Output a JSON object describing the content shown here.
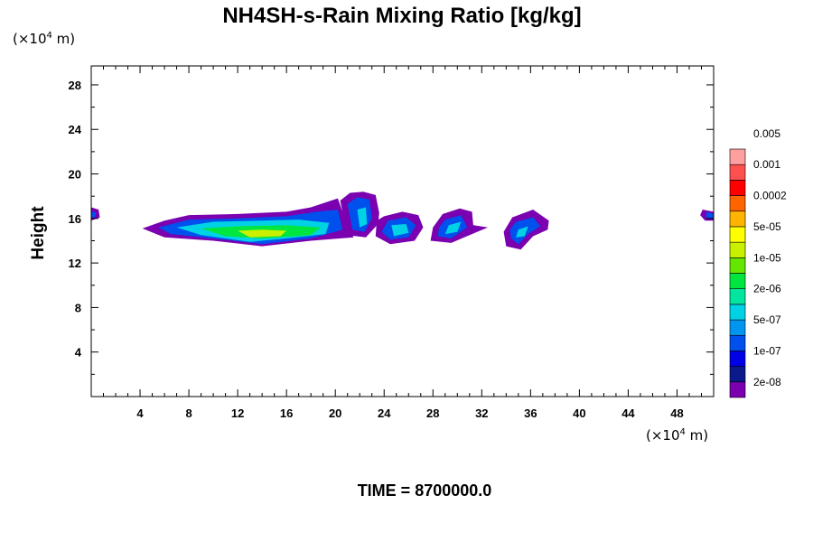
{
  "chart_data": {
    "type": "contour",
    "title": "NH4SH-s-Rain Mixing Ratio [kg/kg]",
    "ylabel": "Height",
    "x_unit": {
      "prefix": "(×10",
      "exp": "4",
      "suffix": " m)"
    },
    "y_unit": {
      "prefix": "(×10",
      "exp": "4",
      "suffix": " m)"
    },
    "footer": "TIME = 8700000.0",
    "xlim": [
      0,
      51
    ],
    "ylim": [
      0,
      29.7
    ],
    "x_ticks": [
      4,
      8,
      12,
      16,
      20,
      24,
      28,
      32,
      36,
      40,
      44,
      48
    ],
    "y_ticks": [
      4,
      8,
      12,
      16,
      20,
      24,
      28
    ],
    "colorbar": {
      "colors": [
        "#7a00b0",
        "#0a1a8a",
        "#0000e6",
        "#0050ee",
        "#0096f0",
        "#00d2e6",
        "#00e6a0",
        "#00e640",
        "#64e600",
        "#c8f000",
        "#ffff00",
        "#ffb400",
        "#ff6400",
        "#ff0000",
        "#ff5050",
        "#ffa0a0"
      ],
      "labels": [
        "2e-08",
        "1e-07",
        "5e-07",
        "2e-06",
        "1e-05",
        "5e-05",
        "0.0002",
        "0.001",
        "0.005"
      ]
    },
    "regions": [
      {
        "name": "main-band",
        "bounds": [
          [
            4.2,
            15.1
          ],
          [
            6,
            15.8
          ],
          [
            8,
            16.3
          ],
          [
            12,
            16.4
          ],
          [
            16,
            16.6
          ],
          [
            18,
            17.0
          ],
          [
            20.2,
            17.8
          ],
          [
            20.8,
            16.0
          ],
          [
            21.5,
            14.3
          ],
          [
            18,
            14.0
          ],
          [
            14,
            13.5
          ],
          [
            10,
            14.0
          ],
          [
            6,
            14.3
          ]
        ],
        "levels": [
          [
            [
              4.2,
              15.1
            ],
            [
              6,
              15.8
            ],
            [
              8,
              16.3
            ],
            [
              12,
              16.4
            ],
            [
              16,
              16.6
            ],
            [
              18,
              17.0
            ],
            [
              20.2,
              17.8
            ],
            [
              20.8,
              16.0
            ],
            [
              21.5,
              14.3
            ],
            [
              18,
              14.0
            ],
            [
              14,
              13.5
            ],
            [
              10,
              14.0
            ],
            [
              6,
              14.3
            ]
          ],
          [
            [
              5.5,
              15.2
            ],
            [
              8,
              15.9
            ],
            [
              12,
              16.0
            ],
            [
              16,
              16.2
            ],
            [
              18.5,
              16.6
            ],
            [
              20.2,
              16.8
            ],
            [
              20.6,
              15.0
            ],
            [
              18,
              14.2
            ],
            [
              14,
              13.7
            ],
            [
              10,
              14.2
            ],
            [
              6.5,
              14.6
            ]
          ],
          [
            [
              7,
              15.2
            ],
            [
              10,
              15.7
            ],
            [
              14,
              15.8
            ],
            [
              17,
              15.9
            ],
            [
              19.5,
              15.6
            ],
            [
              19.2,
              14.6
            ],
            [
              16,
              14.2
            ],
            [
              13,
              13.9
            ],
            [
              9,
              14.5
            ]
          ],
          [
            [
              9,
              15.1
            ],
            [
              12,
              15.3
            ],
            [
              16,
              15.4
            ],
            [
              18.8,
              15.2
            ],
            [
              18,
              14.5
            ],
            [
              14,
              14.2
            ],
            [
              11,
              14.4
            ]
          ],
          [
            [
              12,
              14.9
            ],
            [
              14,
              15.0
            ],
            [
              16,
              14.9
            ],
            [
              15.5,
              14.4
            ],
            [
              13,
              14.3
            ]
          ]
        ]
      },
      {
        "name": "cell-22",
        "bounds": [
          [
            20.4,
            17.6
          ],
          [
            21.2,
            18.3
          ],
          [
            22.3,
            18.4
          ],
          [
            23.3,
            18.1
          ],
          [
            23.6,
            16.5
          ],
          [
            23.5,
            15.5
          ],
          [
            22.5,
            14.3
          ],
          [
            21.0,
            14.5
          ]
        ],
        "levels": [
          [
            [
              20.4,
              17.6
            ],
            [
              21.2,
              18.3
            ],
            [
              22.3,
              18.4
            ],
            [
              23.3,
              18.1
            ],
            [
              23.6,
              16.5
            ],
            [
              23.5,
              15.5
            ],
            [
              22.5,
              14.3
            ],
            [
              21.0,
              14.5
            ]
          ],
          [
            [
              21.0,
              17.3
            ],
            [
              21.8,
              17.9
            ],
            [
              22.8,
              17.7
            ],
            [
              23.0,
              16.0
            ],
            [
              22.4,
              14.8
            ],
            [
              21.4,
              15.0
            ]
          ],
          [
            [
              21.8,
              16.8
            ],
            [
              22.5,
              17.0
            ],
            [
              22.6,
              15.5
            ],
            [
              22.0,
              15.2
            ]
          ]
        ]
      },
      {
        "name": "cell-25",
        "bounds": [
          [
            24.0,
            16.2
          ],
          [
            25.5,
            16.6
          ],
          [
            26.8,
            16.3
          ],
          [
            27.2,
            15.2
          ],
          [
            26.5,
            14.0
          ],
          [
            24.5,
            13.7
          ],
          [
            23.3,
            14.4
          ],
          [
            23.4,
            15.8
          ]
        ],
        "levels": [
          [
            [
              24.0,
              16.2
            ],
            [
              25.5,
              16.6
            ],
            [
              26.8,
              16.3
            ],
            [
              27.2,
              15.2
            ],
            [
              26.5,
              14.0
            ],
            [
              24.5,
              13.7
            ],
            [
              23.3,
              14.4
            ],
            [
              23.4,
              15.8
            ]
          ],
          [
            [
              24.3,
              15.8
            ],
            [
              25.8,
              16.1
            ],
            [
              26.6,
              15.4
            ],
            [
              26.0,
              14.3
            ],
            [
              24.5,
              14.1
            ],
            [
              23.8,
              14.8
            ]
          ],
          [
            [
              24.6,
              15.4
            ],
            [
              25.8,
              15.5
            ],
            [
              26.0,
              14.7
            ],
            [
              24.8,
              14.4
            ]
          ]
        ]
      },
      {
        "name": "cell-29",
        "bounds": [
          [
            28.8,
            16.4
          ],
          [
            30.2,
            16.9
          ],
          [
            31.2,
            16.6
          ],
          [
            31.3,
            15.4
          ],
          [
            32.5,
            15.2
          ],
          [
            31.0,
            14.5
          ],
          [
            29.5,
            13.8
          ],
          [
            27.8,
            14.0
          ],
          [
            28.0,
            15.2
          ]
        ],
        "levels": [
          [
            [
              28.8,
              16.4
            ],
            [
              30.2,
              16.9
            ],
            [
              31.2,
              16.6
            ],
            [
              31.3,
              15.4
            ],
            [
              32.5,
              15.2
            ],
            [
              31.0,
              14.5
            ],
            [
              29.5,
              13.8
            ],
            [
              27.8,
              14.0
            ],
            [
              28.0,
              15.2
            ]
          ],
          [
            [
              29.0,
              15.9
            ],
            [
              30.3,
              16.3
            ],
            [
              30.8,
              15.2
            ],
            [
              29.5,
              14.2
            ],
            [
              28.4,
              14.4
            ],
            [
              28.5,
              15.2
            ]
          ],
          [
            [
              29.3,
              15.4
            ],
            [
              30.3,
              15.7
            ],
            [
              30.0,
              14.8
            ],
            [
              29.0,
              14.6
            ]
          ]
        ]
      },
      {
        "name": "cell-36",
        "bounds": [
          [
            34.5,
            16.1
          ],
          [
            36.2,
            16.8
          ],
          [
            37.5,
            15.8
          ],
          [
            37.4,
            15.0
          ],
          [
            36.2,
            14.4
          ],
          [
            35.2,
            13.2
          ],
          [
            34.0,
            13.5
          ],
          [
            33.8,
            14.8
          ]
        ],
        "levels": [
          [
            [
              34.5,
              16.1
            ],
            [
              36.2,
              16.8
            ],
            [
              37.5,
              15.8
            ],
            [
              37.4,
              15.0
            ],
            [
              36.2,
              14.4
            ],
            [
              35.2,
              13.2
            ],
            [
              34.0,
              13.5
            ],
            [
              33.8,
              14.8
            ]
          ],
          [
            [
              34.8,
              15.7
            ],
            [
              36.2,
              16.1
            ],
            [
              36.8,
              15.3
            ],
            [
              35.8,
              14.6
            ],
            [
              35.0,
              13.7
            ],
            [
              34.4,
              14.2
            ],
            [
              34.3,
              15.0
            ]
          ],
          [
            [
              35.0,
              15.0
            ],
            [
              35.8,
              15.3
            ],
            [
              35.5,
              14.4
            ],
            [
              34.8,
              14.3
            ]
          ]
        ]
      },
      {
        "name": "edge-left",
        "bounds": [
          [
            0,
            17.0
          ],
          [
            0.6,
            16.8
          ],
          [
            0.7,
            16.1
          ],
          [
            0,
            15.8
          ]
        ],
        "levels": [
          [
            [
              0,
              17.0
            ],
            [
              0.6,
              16.8
            ],
            [
              0.7,
              16.1
            ],
            [
              0,
              15.8
            ]
          ],
          [
            [
              0,
              16.7
            ],
            [
              0.4,
              16.5
            ],
            [
              0.3,
              16.1
            ],
            [
              0,
              16.1
            ]
          ]
        ]
      },
      {
        "name": "edge-right",
        "bounds": [
          [
            50.1,
            16.8
          ],
          [
            51,
            16.6
          ],
          [
            51,
            15.8
          ],
          [
            50.3,
            15.8
          ],
          [
            49.9,
            16.3
          ]
        ],
        "levels": [
          [
            [
              50.1,
              16.8
            ],
            [
              51,
              16.6
            ],
            [
              51,
              15.8
            ],
            [
              50.3,
              15.8
            ],
            [
              49.9,
              16.3
            ]
          ],
          [
            [
              50.4,
              16.6
            ],
            [
              51,
              16.4
            ],
            [
              51,
              16.0
            ],
            [
              50.4,
              16.0
            ]
          ]
        ]
      }
    ]
  }
}
